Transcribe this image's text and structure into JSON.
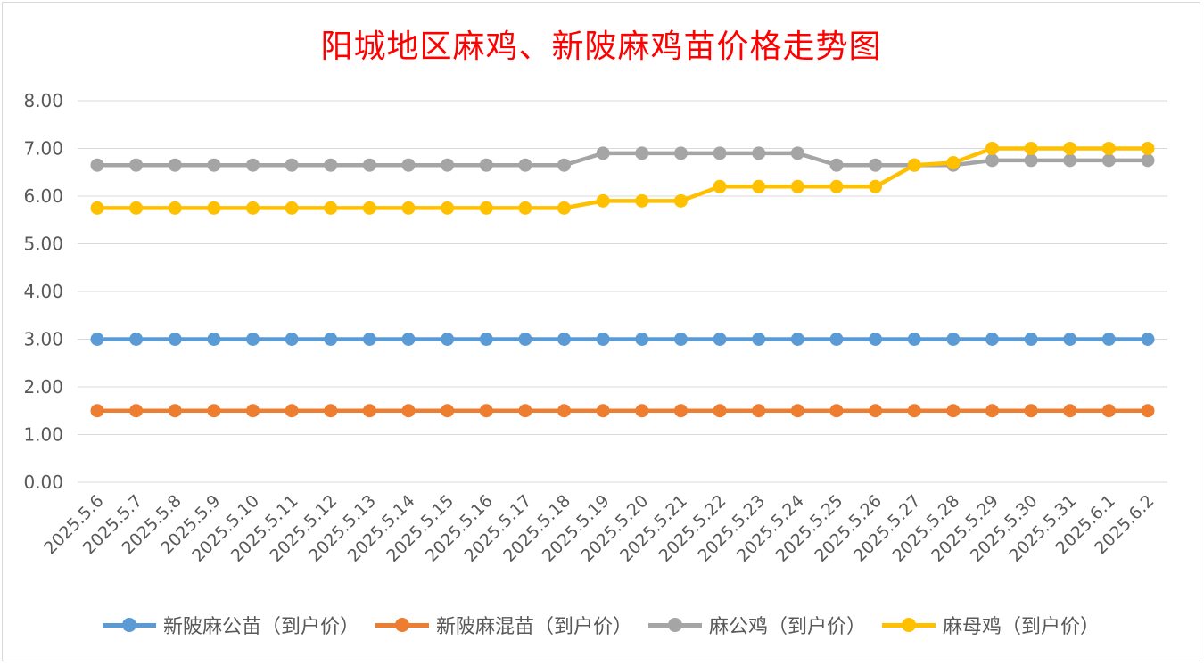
{
  "chart_data": {
    "type": "line",
    "title": "阳城地区麻鸡、新陂麻鸡苗价格走势图",
    "xlabel": "",
    "ylabel": "",
    "ylim": [
      0,
      8
    ],
    "yticks": [
      "0.00",
      "1.00",
      "2.00",
      "3.00",
      "4.00",
      "5.00",
      "6.00",
      "7.00",
      "8.00"
    ],
    "grid": true,
    "legend_position": "bottom",
    "categories": [
      "2025.5.6",
      "2025.5.7",
      "2025.5.8",
      "2025.5.9",
      "2025.5.10",
      "2025.5.11",
      "2025.5.12",
      "2025.5.13",
      "2025.5.14",
      "2025.5.15",
      "2025.5.16",
      "2025.5.17",
      "2025.5.18",
      "2025.5.19",
      "2025.5.20",
      "2025.5.21",
      "2025.5.22",
      "2025.5.23",
      "2025.5.24",
      "2025.5.25",
      "2025.5.26",
      "2025.5.27",
      "2025.5.28",
      "2025.5.29",
      "2025.5.30",
      "2025.5.31",
      "2025.6.1",
      "2025.6.2"
    ],
    "series": [
      {
        "name": "新陂麻公苗（到户价）",
        "color": "#5b9bd5",
        "values": [
          3,
          3,
          3,
          3,
          3,
          3,
          3,
          3,
          3,
          3,
          3,
          3,
          3,
          3,
          3,
          3,
          3,
          3,
          3,
          3,
          3,
          3,
          3,
          3,
          3,
          3,
          3,
          3
        ]
      },
      {
        "name": "新陂麻混苗（到户价）",
        "color": "#ed7d31",
        "values": [
          1.5,
          1.5,
          1.5,
          1.5,
          1.5,
          1.5,
          1.5,
          1.5,
          1.5,
          1.5,
          1.5,
          1.5,
          1.5,
          1.5,
          1.5,
          1.5,
          1.5,
          1.5,
          1.5,
          1.5,
          1.5,
          1.5,
          1.5,
          1.5,
          1.5,
          1.5,
          1.5,
          1.5
        ]
      },
      {
        "name": "麻公鸡（到户价）",
        "color": "#a5a5a5",
        "values": [
          6.65,
          6.65,
          6.65,
          6.65,
          6.65,
          6.65,
          6.65,
          6.65,
          6.65,
          6.65,
          6.65,
          6.65,
          6.65,
          6.9,
          6.9,
          6.9,
          6.9,
          6.9,
          6.9,
          6.65,
          6.65,
          6.65,
          6.65,
          6.75,
          6.75,
          6.75,
          6.75,
          6.75
        ]
      },
      {
        "name": "麻母鸡（到户价）",
        "color": "#ffc000",
        "values": [
          5.75,
          5.75,
          5.75,
          5.75,
          5.75,
          5.75,
          5.75,
          5.75,
          5.75,
          5.75,
          5.75,
          5.75,
          5.75,
          5.9,
          5.9,
          5.9,
          6.2,
          6.2,
          6.2,
          6.2,
          6.2,
          6.65,
          6.7,
          7,
          7,
          7,
          7,
          7
        ]
      }
    ]
  }
}
